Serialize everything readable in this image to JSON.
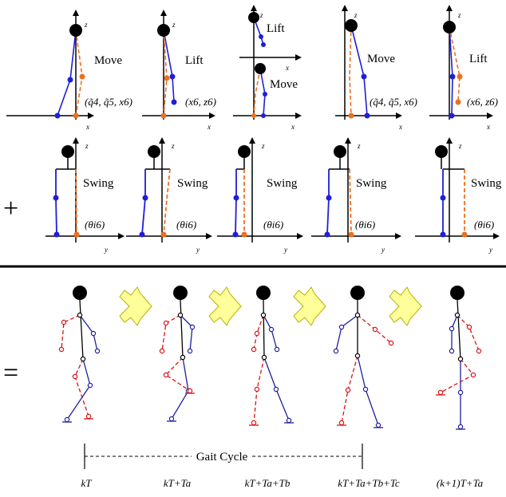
{
  "colors": {
    "body": "#000000",
    "stance_leg": "#1f1fd6",
    "swing_leg": "#ee6f1f",
    "walk_left": "#1f1fa0",
    "walk_right": "#dd1111",
    "arrow_fill": "#ffff99",
    "arrow_stroke": "#b3b300"
  },
  "operators": {
    "plus": "+",
    "equals": "="
  },
  "axes": {
    "z": "z",
    "x": "x",
    "y": "y"
  },
  "sagittal": [
    {
      "label": "Move",
      "param": "(q̃4, q̃5, x6)"
    },
    {
      "label": "Lift",
      "param": "(x6, z6)"
    },
    {
      "label": "Lift",
      "label2": "Move",
      "param": ""
    },
    {
      "label": "Move",
      "param": "(q̃4, q̃5, x6)"
    },
    {
      "label": "Lift",
      "param": "(x6, z6)"
    }
  ],
  "frontal": [
    {
      "label": "Swing",
      "param": "(θi6)"
    },
    {
      "label": "Swing",
      "param": "(θi6)"
    },
    {
      "label": "Swing",
      "param": "(θi6)"
    },
    {
      "label": "Swing",
      "param": "(θi6)"
    },
    {
      "label": "Swing",
      "param": "(θi6)"
    }
  ],
  "gait": {
    "cycle_label": "Gait Cycle",
    "times": [
      "kT",
      "kT+Ta",
      "kT+Ta+Tb",
      "kT+Ta+Tb+Tc",
      "(k+1)T+Ta"
    ]
  }
}
